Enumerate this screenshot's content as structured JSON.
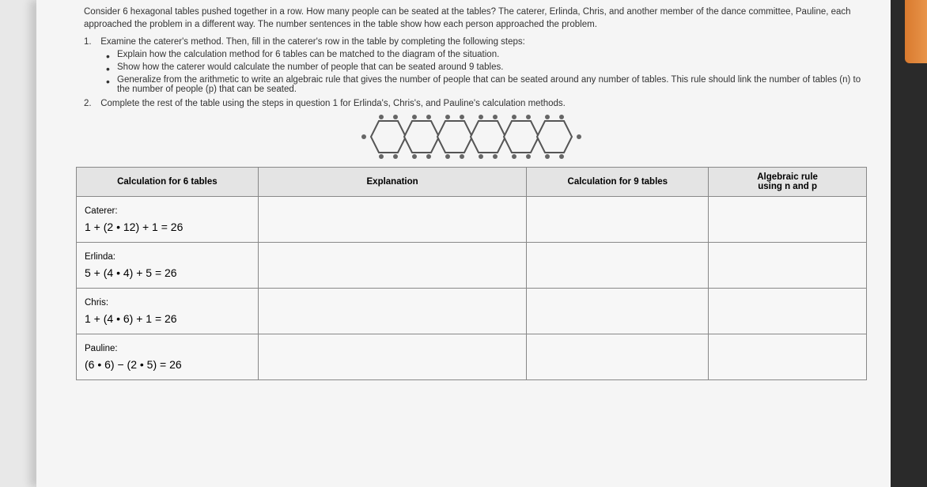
{
  "intro": "Consider 6 hexagonal tables pushed together in a row. How many people can be seated at the tables? The caterer, Erlinda, Chris, and another member of the dance committee, Pauline, each approached the problem in a different way. The number sentences in the table show how each person approached the problem.",
  "q1": {
    "num": "1.",
    "text": "Examine the caterer's method. Then, fill in the caterer's row in the table by completing the following steps:",
    "bullets": [
      "Explain how the calculation method for 6 tables can be matched to the diagram of the situation.",
      "Show how the caterer would calculate the number of people that can be seated around 9 tables.",
      "Generalize from the arithmetic to write an algebraic rule that gives the number of people that can be seated around any number of tables. This rule should link the number of tables (n) to the number of people (p) that can be seated."
    ]
  },
  "q2": {
    "num": "2.",
    "text": "Complete the rest of the table using the steps in question 1 for Erlinda's, Chris's, and Pauline's calculation methods."
  },
  "diagram": {
    "hex_count": 6,
    "hex_stroke": "#555555",
    "hex_fill": "#f5f5f5",
    "dot_color": "#666666"
  },
  "table": {
    "headers": {
      "c1": "Calculation for 6 tables",
      "c2": "Explanation",
      "c3": "Calculation for 9 tables",
      "c4_l1": "Algebraic rule",
      "c4_l2": "using n and p"
    },
    "rows": [
      {
        "person": "Caterer:",
        "formula": "1 + (2 • 12) + 1 = 26"
      },
      {
        "person": "Erlinda:",
        "formula": "5 + (4 • 4) + 5 = 26"
      },
      {
        "person": "Chris:",
        "formula": "1 + (4 • 6) + 1 = 26"
      },
      {
        "person": "Pauline:",
        "formula": "(6 • 6) − (2 • 5) = 26"
      }
    ]
  },
  "italic_vars": {
    "n": "n",
    "p": "p"
  }
}
